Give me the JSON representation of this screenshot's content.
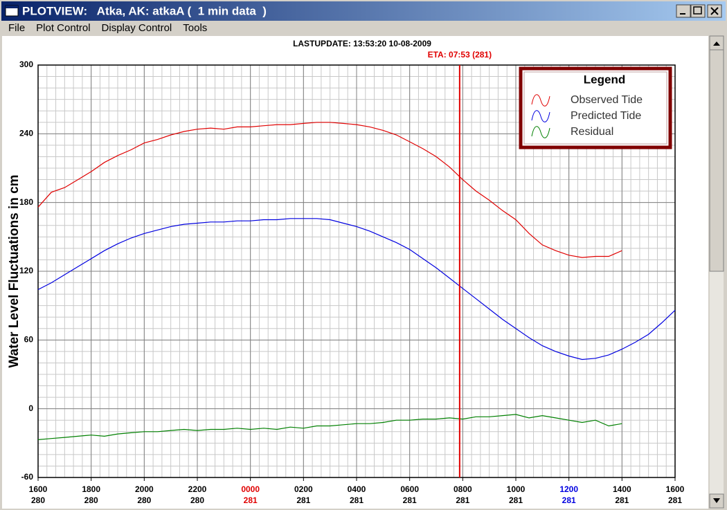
{
  "window": {
    "title": "PLOTVIEW:   Atka, AK: atkaA (  1 min data  )",
    "menu": [
      "File",
      "Plot Control",
      "Display Control",
      "Tools"
    ]
  },
  "chart_data": {
    "type": "line",
    "subtitle": "LASTUPDATE: 13:53:20  10-08-2009",
    "annotation": "ETA: 07:53 (281)",
    "eta_x": 953,
    "eta_color": "#e00000",
    "ylabel": "Water Level Fluctuations in cm",
    "legend_title": "Legend",
    "legend": "upper right",
    "grid": true,
    "minor_grid": {
      "x_step": 20,
      "y_step": 10
    },
    "x": [
      0,
      30,
      60,
      90,
      120,
      150,
      180,
      210,
      240,
      270,
      300,
      330,
      360,
      390,
      420,
      450,
      480,
      510,
      540,
      570,
      600,
      630,
      660,
      690,
      720,
      750,
      780,
      810,
      840,
      870,
      900,
      930,
      960,
      990,
      1020,
      1050,
      1080,
      1110,
      1140,
      1170,
      1200,
      1230,
      1260,
      1290,
      1320,
      1350,
      1380,
      1410,
      1440
    ],
    "xlim": [
      0,
      1440
    ],
    "xticks": [
      {
        "value": 0,
        "label": "1600"
      },
      {
        "value": 120,
        "label": "1800"
      },
      {
        "value": 240,
        "label": "2000"
      },
      {
        "value": 360,
        "label": "2200"
      },
      {
        "value": 480,
        "label": "0000"
      },
      {
        "value": 600,
        "label": "0200"
      },
      {
        "value": 720,
        "label": "0400"
      },
      {
        "value": 840,
        "label": "0600"
      },
      {
        "value": 960,
        "label": "0800"
      },
      {
        "value": 1080,
        "label": "1000"
      },
      {
        "value": 1200,
        "label": "1200"
      },
      {
        "value": 1320,
        "label": "1400"
      },
      {
        "value": 1440,
        "label": "1600"
      }
    ],
    "xtick_days": [
      "280",
      "280",
      "280",
      "280",
      "281",
      "281",
      "281",
      "281",
      "281",
      "281",
      "281",
      "281",
      "281"
    ],
    "xtick_colors": [
      "#000000",
      "#000000",
      "#000000",
      "#000000",
      "#e00000",
      "#000000",
      "#000000",
      "#000000",
      "#000000",
      "#000000",
      "#0000e0",
      "#000000",
      "#000000"
    ],
    "ylim": [
      -60,
      300
    ],
    "yticks": [
      -60,
      0,
      60,
      120,
      180,
      240,
      300
    ],
    "series": [
      {
        "name": "Observed Tide",
        "color": "#e00000",
        "values": [
          176,
          189,
          193,
          200,
          207,
          215,
          221,
          226,
          232,
          235,
          239,
          242,
          244,
          245,
          244,
          246,
          246,
          247,
          248,
          248,
          249,
          250,
          250,
          249,
          248,
          246,
          243,
          239,
          233,
          227,
          220,
          211,
          200,
          190,
          182,
          173,
          165,
          153,
          143,
          138,
          134,
          132,
          133,
          133,
          138,
          null,
          null,
          null,
          null
        ]
      },
      {
        "name": "Predicted Tide",
        "color": "#0000e0",
        "values": [
          104,
          110,
          117,
          124,
          131,
          138,
          144,
          149,
          153,
          156,
          159,
          161,
          162,
          163,
          163,
          164,
          164,
          165,
          165,
          166,
          166,
          166,
          165,
          162,
          159,
          155,
          150,
          145,
          139,
          131,
          123,
          114,
          105,
          96,
          87,
          78,
          70,
          62,
          55,
          50,
          46,
          43,
          44,
          47,
          52,
          58,
          65,
          75,
          86
        ]
      },
      {
        "name": "Residual",
        "color": "#008000",
        "values": [
          -27,
          -26,
          -25,
          -24,
          -23,
          -24,
          -22,
          -21,
          -20,
          -20,
          -19,
          -18,
          -19,
          -18,
          -18,
          -17,
          -18,
          -17,
          -18,
          -16,
          -17,
          -15,
          -15,
          -14,
          -13,
          -13,
          -12,
          -10,
          -10,
          -9,
          -9,
          -8,
          -9,
          -7,
          -7,
          -6,
          -5,
          -8,
          -6,
          -8,
          -10,
          -12,
          -10,
          -15,
          -13,
          null,
          null,
          null,
          null
        ]
      }
    ]
  }
}
